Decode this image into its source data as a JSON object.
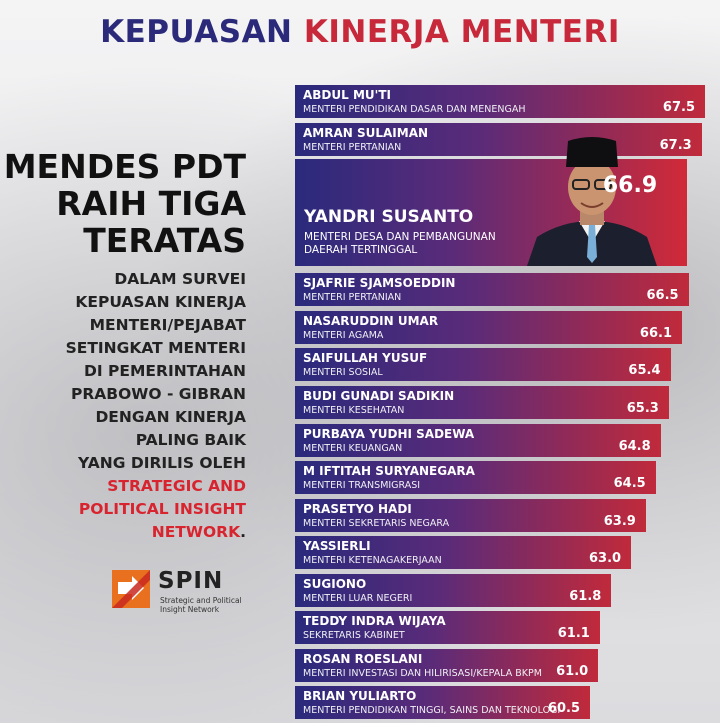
{
  "title": {
    "part1": "KEPUASAN",
    "part2": "KINERJA MENTERI"
  },
  "headline": [
    "MENDES PDT",
    "RAIH TIGA",
    "TERATAS"
  ],
  "description": {
    "lines": [
      "DALAM SURVEI",
      "KEPUASAN KINERJA",
      "MENTERI/PEJABAT",
      "SETINGKAT MENTERI",
      "DI PEMERINTAHAN",
      "PRABOWO - GIBRAN",
      "DENGAN KINERJA",
      "PALING BAIK",
      "YANG DIRILIS OLEH"
    ],
    "highlight_lines": [
      "STRATEGIC AND",
      "POLITICAL INSIGHT",
      "NETWORK"
    ],
    "tail": "."
  },
  "logo": {
    "name": "SPIN",
    "subtitle": "Strategic and Political Insight Network",
    "colors": [
      "#e8701e",
      "#c8281e"
    ]
  },
  "colors": {
    "navy": "#2a2a7c",
    "red": "#c02a3b",
    "highlight": "#d8242e"
  },
  "chart_data": {
    "type": "bar",
    "orientation": "horizontal",
    "title": "KEPUASAN KINERJA MENTERI",
    "featured_index": 2,
    "xlim": [
      0,
      68
    ],
    "series": [
      {
        "name": "ABDUL MU'TI",
        "role": "MENTERI PENDIDIKAN DASAR DAN MENENGAH",
        "value": 67.5
      },
      {
        "name": "AMRAN SULAIMAN",
        "role": "MENTERI PERTANIAN",
        "value": 67.3
      },
      {
        "name": "YANDRI SUSANTO",
        "role": "MENTERI DESA DAN PEMBANGUNAN DAERAH TERTINGGAL",
        "value": 66.9
      },
      {
        "name": "SJAFRIE SJAMSOEDDIN",
        "role": "MENTERI PERTANIAN",
        "value": 66.5
      },
      {
        "name": "NASARUDDIN UMAR",
        "role": "MENTERI AGAMA",
        "value": 66.1
      },
      {
        "name": "SAIFULLAH YUSUF",
        "role": "MENTERI SOSIAL",
        "value": 65.4
      },
      {
        "name": "BUDI GUNADI SADIKIN",
        "role": "MENTERI KESEHATAN",
        "value": 65.3
      },
      {
        "name": "PURBAYA YUDHI SADEWA",
        "role": "MENTERI KEUANGAN",
        "value": 64.8
      },
      {
        "name": "M IFTITAH SURYANEGARA",
        "role": "MENTERI TRANSMIGRASI",
        "value": 64.5
      },
      {
        "name": "PRASETYO HADI",
        "role": "MENTERI SEKRETARIS NEGARA",
        "value": 63.9
      },
      {
        "name": "YASSIERLI",
        "role": "MENTERI KETENAGAKERJAAN",
        "value": 63.0
      },
      {
        "name": "SUGIONO",
        "role": "MENTERI LUAR NEGERI",
        "value": 61.8
      },
      {
        "name": "TEDDY INDRA WIJAYA",
        "role": "SEKRETARIS KABINET",
        "value": 61.1
      },
      {
        "name": "ROSAN ROESLANI",
        "role": "MENTERI INVESTASI DAN HILIRISASI/KEPALA BKPM",
        "value": 61.0
      },
      {
        "name": "BRIAN YULIARTO",
        "role": "MENTERI PENDIDIKAN TINGGI, SAINS DAN TEKNOLOGI",
        "value": 60.5
      }
    ]
  }
}
